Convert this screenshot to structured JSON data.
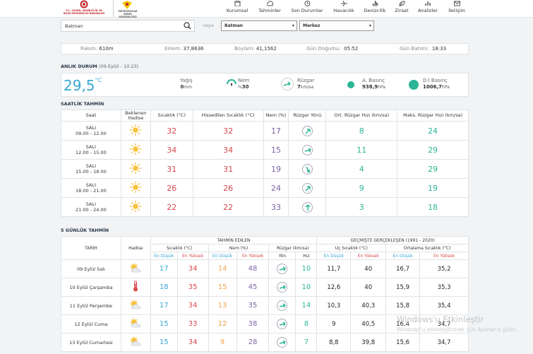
{
  "header": {
    "logo1_text": "T.C. ÇEVRE, ŞEHİRCİLİK VE İKLİM DEĞİŞİKLİĞİ BAKANLIĞI",
    "logo2_text": "METEOROLOJİ GENEL MÜDÜRLÜĞÜ",
    "nav": [
      "Kurumsal",
      "Tahminler",
      "Son Durumlar",
      "Havacılık",
      "Denizcilik",
      "Ziraat",
      "Analizler",
      "İletişim"
    ]
  },
  "search": {
    "value": "Batman",
    "or_label": "veya",
    "province": "Batman",
    "district": "Merkez"
  },
  "info": {
    "altitude_label": "Rakım:",
    "altitude_value": "610",
    "altitude_unit": "m",
    "lat_label": "Enlem:",
    "lat_value": "37,8636",
    "lon_label": "Boylam:",
    "lon_value": "41,1562",
    "sunrise_label": "Gün Doğumu:",
    "sunrise_value": "05:52",
    "sunset_label": "Gün Batımı:",
    "sunset_value": "18:33"
  },
  "current": {
    "title": "ANLIK DURUM",
    "subtitle": "(09 Eylül - 10.23)",
    "temp": "29,5",
    "temp_unit": "°C",
    "rain_label": "Yağış",
    "rain_value": "0",
    "rain_unit": "mm",
    "humidity_label": "Nem",
    "humidity_value": "30",
    "humidity_unit": "%",
    "wind_label": "Rüzgar",
    "wind_value": "7",
    "wind_unit": "km/sa",
    "pressure_label": "A. Basınç",
    "pressure_value": "938,9",
    "pressure_unit": "hPa",
    "sea_pressure_label": "D.İ Basınç",
    "sea_pressure_value": "1006,7",
    "sea_pressure_unit": "hPa"
  },
  "hourly": {
    "title": "SAATLİK TAHMİN",
    "headers": [
      "Saat",
      "Beklenen Hadise",
      "Sıcaklık (°C)",
      "Hissedilen Sıcaklık (°C)",
      "Nem (%)",
      "Rüzgar Yönü",
      "Ort. Rüzgar Hızı (km/sa)",
      "Maks. Rüzgar Hızı (km/sa)"
    ],
    "rows": [
      {
        "day": "SALI",
        "time": "09.00 - 12.00",
        "temp": "32",
        "feels": "32",
        "hum": "17",
        "wind": "8",
        "max": "24"
      },
      {
        "day": "SALI",
        "time": "12.00 - 15.00",
        "temp": "34",
        "feels": "34",
        "hum": "15",
        "wind": "11",
        "max": "29"
      },
      {
        "day": "SALI",
        "time": "15.00 - 18.00",
        "temp": "31",
        "feels": "31",
        "hum": "19",
        "wind": "4",
        "max": "29"
      },
      {
        "day": "SALI",
        "time": "18.00 - 21.00",
        "temp": "26",
        "feels": "26",
        "hum": "24",
        "wind": "9",
        "max": "19"
      },
      {
        "day": "SALI",
        "time": "21.00 - 24.00",
        "temp": "22",
        "feels": "22",
        "hum": "33",
        "wind": "3",
        "max": "18"
      }
    ]
  },
  "daily": {
    "title": "5 GÜNLÜK TAHMİN",
    "forecast_header": "TAHMİN EDİLEN",
    "history_header": "GEÇMİŞTE GERÇEKLEŞEN (1991 - 2020)",
    "date_header": "TARİH",
    "event_header": "Hadise",
    "temp_header": "Sıcaklık (°C)",
    "hum_header": "Nem (%)",
    "wind_header": "Rüzgar (km/sa)",
    "extreme_header": "Uç Sıcaklık (°C)",
    "avg_header": "Ortalama Sıcaklık (°C)",
    "low_label": "En Düşük",
    "high_label": "En Yüksek",
    "dir_label": "Yön",
    "speed_label": "Hız",
    "rows": [
      {
        "date": "09 Eylül Salı",
        "tmin": "17",
        "tmax": "34",
        "hmin": "14",
        "hmax": "48",
        "wind": "10",
        "xmin": "11,7",
        "xmax": "40",
        "amin": "16,7",
        "amax": "35,2"
      },
      {
        "date": "10 Eylül Çarşamba",
        "tmin": "18",
        "tmax": "35",
        "hmin": "15",
        "hmax": "45",
        "wind": "10",
        "xmin": "12,6",
        "xmax": "40",
        "amin": "15,9",
        "amax": "35,3"
      },
      {
        "date": "11 Eylül Perşembe",
        "tmin": "17",
        "tmax": "34",
        "hmin": "13",
        "hmax": "35",
        "wind": "14",
        "xmin": "10,3",
        "xmax": "40,3",
        "amin": "15,8",
        "amax": "35,4"
      },
      {
        "date": "12 Eylül Cuma",
        "tmin": "15",
        "tmax": "33",
        "hmin": "12",
        "hmax": "38",
        "wind": "8",
        "xmin": "9",
        "xmax": "40,5",
        "amin": "16,4",
        "amax": "34,7"
      },
      {
        "date": "13 Eylül Cumartesi",
        "tmin": "15",
        "tmax": "34",
        "hmin": "9",
        "hmax": "28",
        "wind": "7",
        "xmin": "8,8",
        "xmax": "39,8",
        "amin": "15,6",
        "amax": "34,7"
      }
    ]
  },
  "watermark": {
    "line1": "Windows'u Etkinleştir",
    "line2": "Windows'u etkinleştirmek için Ayarlar'a gidin."
  }
}
